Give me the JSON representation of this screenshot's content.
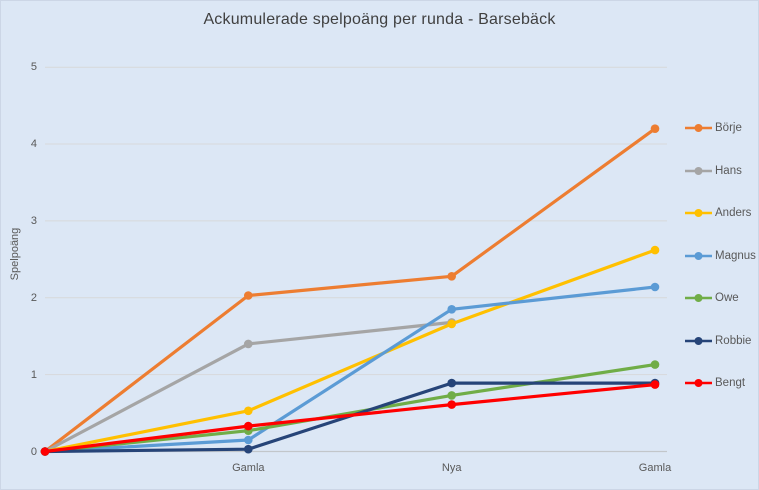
{
  "title": "Ackumulerade spelpoäng per runda - Barsebäck",
  "theme": {
    "background": "#dce7f5",
    "border_color": "#ccd6e6",
    "gridline_color": "#d7d9da",
    "axis_line_color": "#c2c6ca",
    "label_color": "#595959",
    "title_color": "#404040"
  },
  "chart_data": {
    "type": "line",
    "title": "Ackumulerade spelpoäng per runda - Barsebäck",
    "xlabel": "",
    "ylabel": "Spelpoäng",
    "categories": [
      "",
      "Gamla",
      "Nya",
      "Gamla"
    ],
    "ylim": [
      0,
      5
    ],
    "yticks": [
      0,
      1,
      2,
      3,
      4,
      5
    ],
    "grid": true,
    "legend_position": "right",
    "marker": "circle",
    "series": [
      {
        "name": "Börje",
        "color": "#ED7D31",
        "values": [
          0,
          2.03,
          2.28,
          4.2
        ]
      },
      {
        "name": "Hans",
        "color": "#A5A5A5",
        "values": [
          0,
          1.4,
          1.68,
          null
        ]
      },
      {
        "name": "Anders",
        "color": "#FFC000",
        "values": [
          0,
          0.53,
          1.66,
          2.62
        ]
      },
      {
        "name": "Magnus",
        "color": "#5B9BD5",
        "values": [
          0,
          0.15,
          1.85,
          2.14
        ]
      },
      {
        "name": "Owe",
        "color": "#70AD47",
        "values": [
          0,
          0.27,
          0.73,
          1.13
        ]
      },
      {
        "name": "Robbie",
        "color": "#264478",
        "values": [
          0,
          0.03,
          0.89,
          0.89
        ]
      },
      {
        "name": "Bengt",
        "color": "#FF0000",
        "values": [
          0,
          0.33,
          0.61,
          0.87
        ]
      }
    ]
  }
}
